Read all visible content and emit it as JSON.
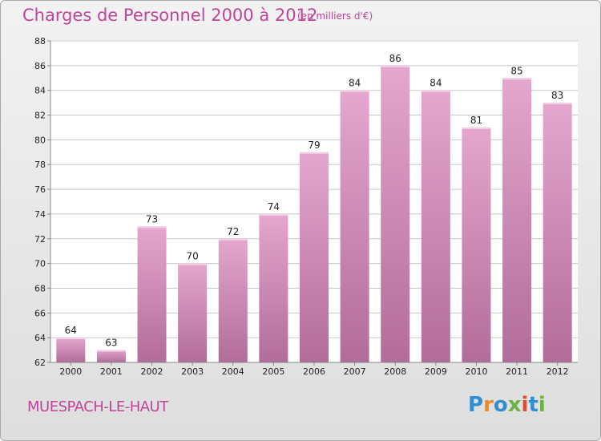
{
  "header": {
    "title": "Charges de Personnel 2000 à 2012",
    "subtitle": "(en milliers d'€)"
  },
  "footer": {
    "place": "MUESPACH-LE-HAUT",
    "logo": [
      "P",
      "r",
      "o",
      "x",
      "i",
      "t",
      "i"
    ]
  },
  "colors": {
    "title": "#c0449a",
    "bar_light": "#e4a7cd",
    "bar_dark": "#b26c99",
    "logo": [
      "#2f8fd0",
      "#f08a1c",
      "#2f8fd0",
      "#6cb33f",
      "#e84a2f",
      "#2f8fd0",
      "#6cb33f"
    ]
  },
  "chart_data": {
    "type": "bar",
    "title": "Charges de Personnel 2000 à 2012",
    "subtitle": "(en milliers d'€)",
    "categories": [
      "2000",
      "2001",
      "2002",
      "2003",
      "2004",
      "2005",
      "2006",
      "2007",
      "2008",
      "2009",
      "2010",
      "2011",
      "2012"
    ],
    "values": [
      64,
      63,
      73,
      70,
      72,
      74,
      79,
      84,
      86,
      84,
      81,
      85,
      83
    ],
    "ylim": [
      62,
      88
    ],
    "yticks": [
      62,
      64,
      66,
      68,
      70,
      72,
      74,
      76,
      78,
      80,
      82,
      84,
      86,
      88
    ],
    "grid": true,
    "xlabel": "",
    "ylabel": ""
  }
}
